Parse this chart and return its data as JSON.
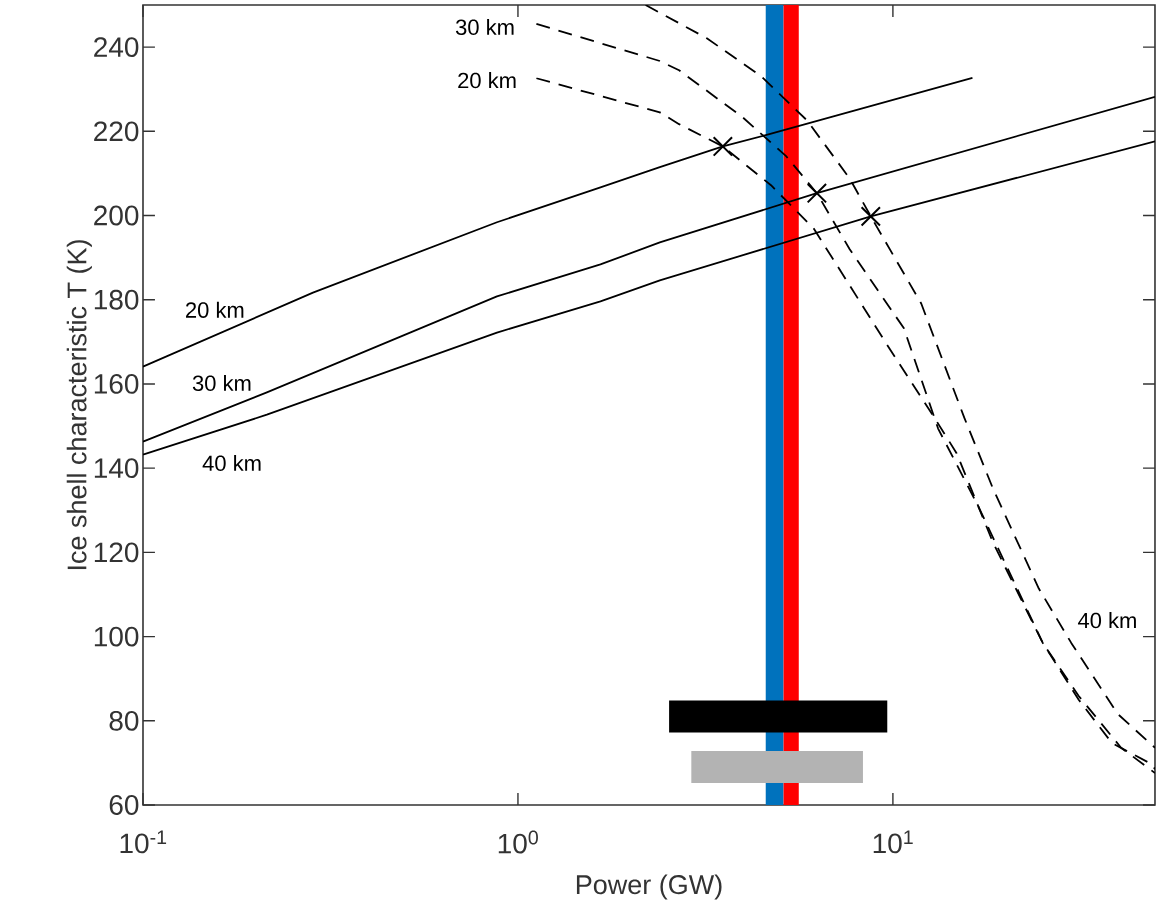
{
  "chart_data": {
    "type": "line",
    "xlabel": "Power (GW)",
    "ylabel": "Ice shell characteristic T (K)",
    "log": "x",
    "xlim": [
      0.1,
      50
    ],
    "ylim": [
      60,
      250
    ],
    "xticks": [
      {
        "value": 0.1,
        "label": "10$^{-1}$"
      },
      {
        "value": 1,
        "label": "10$^{0}$"
      },
      {
        "value": 10,
        "label": "10$^{1}$"
      }
    ],
    "yticks": [
      60,
      80,
      100,
      120,
      140,
      160,
      180,
      200,
      220,
      240
    ],
    "bands": [
      {
        "axis": "x",
        "from": 4.58,
        "to": 5.11,
        "color": "#0072bd"
      },
      {
        "axis": "x",
        "from": 5.11,
        "to": 5.61,
        "color": "#ff0000"
      }
    ],
    "series": [
      {
        "color": "#000000",
        "line_style": "solid",
        "x": [
          0.1,
          0.284,
          0.879,
          1.66,
          2.39,
          3.52,
          4.58,
          16.3
        ],
        "values": [
          164.1,
          181.7,
          198.4,
          206.7,
          211.5,
          216.4,
          219.1,
          232.7
        ]
      },
      {
        "color": "#000000",
        "line_style": "solid",
        "x": [
          0.1,
          0.214,
          0.879,
          1.66,
          2.39,
          6.27,
          50
        ],
        "values": [
          146.3,
          158,
          180.8,
          188.4,
          193.6,
          205.3,
          228.2
        ]
      },
      {
        "color": "#000000",
        "line_style": "solid",
        "x": [
          0.1,
          0.214,
          0.879,
          1.66,
          2.39,
          8.73,
          50
        ],
        "values": [
          143.2,
          152.7,
          172.2,
          179.6,
          184.6,
          199.8,
          217.6
        ]
      },
      {
        "color": "#000000",
        "line_style": "dashed",
        "x": [
          1.12,
          2.39,
          2.69,
          3.52,
          4.73,
          6.15,
          7.67,
          9.57,
          12.9,
          14.8,
          18.5,
          25.1,
          31.3,
          40.6,
          50
        ],
        "values": [
          232.6,
          224.5,
          221.7,
          216.4,
          207.2,
          196.9,
          183.4,
          169.8,
          152,
          143.5,
          122.3,
          98.5,
          85.9,
          73.6,
          67.6
        ]
      },
      {
        "color": "#000000",
        "line_style": "dashed",
        "x": [
          1.12,
          2.39,
          2.69,
          3.98,
          5.19,
          6.27,
          7.67,
          10.7,
          13.2,
          16.9,
          25.1,
          31.3,
          38.4,
          49,
          50
        ],
        "values": [
          245.5,
          236.7,
          234.5,
          223.3,
          214.1,
          205.3,
          192,
          173.2,
          149.4,
          130.9,
          98.5,
          85,
          74.7,
          69.7,
          68.5
        ]
      },
      {
        "color": "#000000",
        "line_style": "dashed",
        "x": [
          2.19,
          3.19,
          4.45,
          5.9,
          7.67,
          8.73,
          11.9,
          15.5,
          18.5,
          24.5,
          29.9,
          39.8,
          50
        ],
        "values": [
          250,
          242.1,
          233.1,
          222.6,
          208.8,
          199.8,
          179.1,
          152,
          135.1,
          111.4,
          98.5,
          81.6,
          73.6
        ]
      },
      {
        "type": "scatter",
        "color": "#000000",
        "marker": "cross",
        "x": [
          3.52,
          6.27,
          8.73
        ],
        "values": [
          216.4,
          205.3,
          199.8
        ]
      },
      {
        "color": "#000000",
        "line_style": "solid",
        "x": [
          2.53,
          9.66
        ],
        "values": [
          81,
          81
        ]
      },
      {
        "color": "#b3b3b3",
        "line_style": "solid",
        "x": [
          2.9,
          8.32
        ],
        "values": [
          69,
          69
        ]
      }
    ],
    "annotations": [
      "20 km",
      "30 km",
      "40 km",
      "30 km",
      "20 km",
      "40 km"
    ]
  }
}
